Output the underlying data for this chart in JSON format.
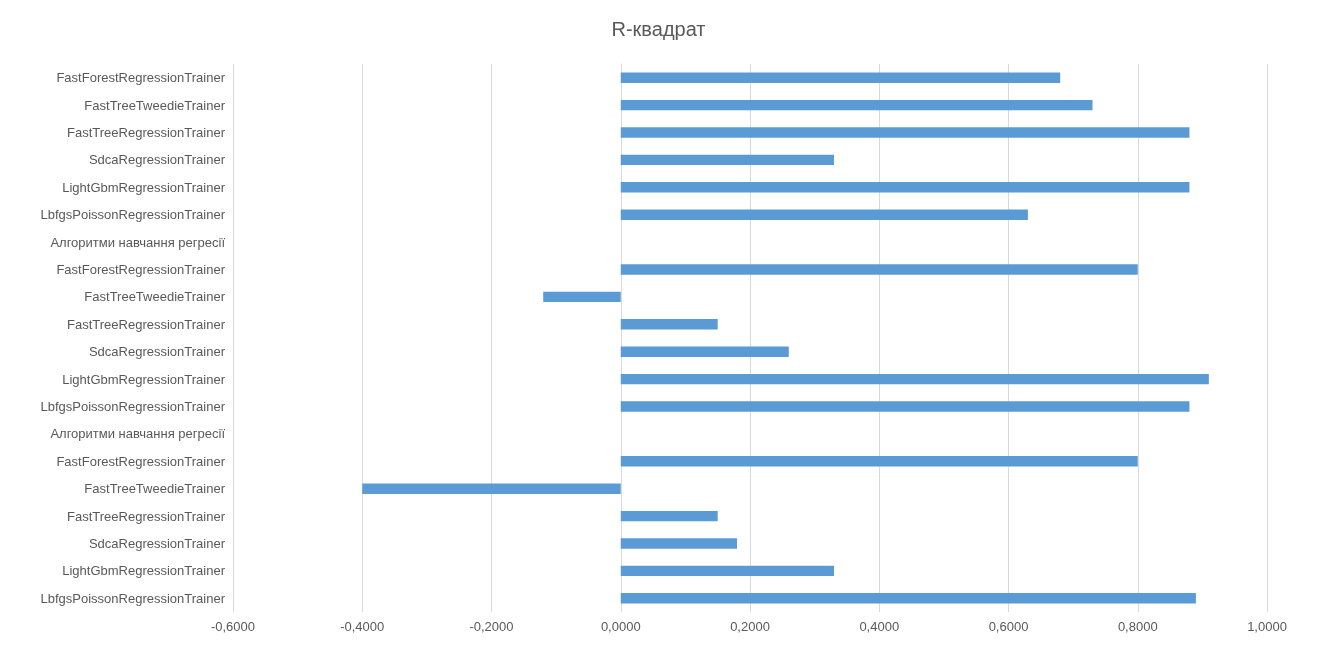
{
  "chart_data": {
    "type": "bar",
    "title": "R-квадрат",
    "orientation": "horizontal",
    "categories": [
      "FastForestRegressionTrainer",
      "FastTreeTweedieTrainer",
      "FastTreeRegressionTrainer",
      "SdcaRegressionTrainer",
      "LightGbmRegressionTrainer",
      "LbfgsPoissonRegressionTrainer",
      "Алгоритми навчання регресії",
      "FastForestRegressionTrainer",
      "FastTreeTweedieTrainer",
      "FastTreeRegressionTrainer",
      "SdcaRegressionTrainer",
      "LightGbmRegressionTrainer",
      "LbfgsPoissonRegressionTrainer",
      "Алгоритми навчання регресії",
      "FastForestRegressionTrainer",
      "FastTreeTweedieTrainer",
      "FastTreeRegressionTrainer",
      "SdcaRegressionTrainer",
      "LightGbmRegressionTrainer",
      "LbfgsPoissonRegressionTrainer"
    ],
    "values": [
      0.68,
      0.73,
      0.88,
      0.33,
      0.88,
      0.63,
      null,
      0.8,
      -0.12,
      0.15,
      0.26,
      0.91,
      0.88,
      null,
      0.8,
      -0.4,
      0.15,
      0.18,
      0.33,
      0.89
    ],
    "color": "#5b9bd5",
    "xlim": [
      -0.6,
      1.0
    ],
    "xticks": [
      {
        "value": -0.6,
        "label": "-0,6000"
      },
      {
        "value": -0.4,
        "label": "-0,4000"
      },
      {
        "value": -0.2,
        "label": "-0,2000"
      },
      {
        "value": 0,
        "label": "0,0000"
      },
      {
        "value": 0.2,
        "label": "0,2000"
      },
      {
        "value": 0.4,
        "label": "0,4000"
      },
      {
        "value": 0.6,
        "label": "0,6000"
      },
      {
        "value": 0.8,
        "label": "0,8000"
      },
      {
        "value": 1.0,
        "label": "1,0000"
      }
    ],
    "grid": "x"
  }
}
